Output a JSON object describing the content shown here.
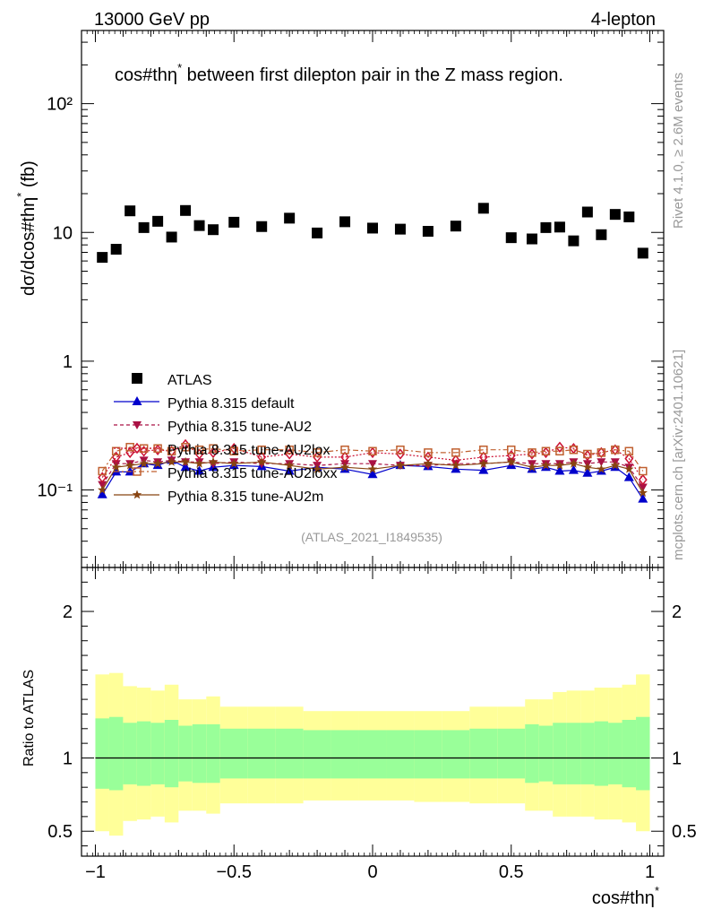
{
  "header": {
    "left": "13000 GeV pp",
    "right": "4-lepton",
    "side_right": "Rivet 4.1.0, ≥ 2.6M events",
    "side_right2": "mcplots.cern.ch [arXiv:2401.10621]",
    "watermark": "(ATLAS_2021_I1849535)"
  },
  "chart_data": [
    {
      "type": "scatter",
      "panel": "main",
      "title": "cos#thη* between first dilepton pair in the Z mass region.",
      "title_main": "cos#thη",
      "title_sup": "*",
      "title_rest": " between first dilepton pair in the Z mass region.",
      "ylabel": "dσ/dcos#thη* (fb)",
      "ylabel_main": "dσ/dcos#thη",
      "ylabel_sup": "*",
      "ylabel_rest": " (fb)",
      "yscale": "log",
      "xlim": [
        -1.05,
        1.05
      ],
      "ylim": [
        0.025,
        370
      ],
      "ytick_values": [
        0.1,
        1,
        10,
        100
      ],
      "ytick_labels": [
        "10⁻¹",
        "1",
        "10",
        "10²"
      ],
      "x": [
        -0.975,
        -0.925,
        -0.875,
        -0.825,
        -0.775,
        -0.725,
        -0.675,
        -0.625,
        -0.575,
        -0.5,
        -0.4,
        -0.3,
        -0.2,
        -0.1,
        0.0,
        0.1,
        0.2,
        0.3,
        0.4,
        0.5,
        0.575,
        0.625,
        0.675,
        0.725,
        0.775,
        0.825,
        0.875,
        0.925,
        0.975
      ],
      "series": [
        {
          "name": "ATLAS",
          "marker": "square",
          "color": "#000000",
          "values": [
            6.4,
            7.4,
            14.7,
            10.9,
            12.2,
            9.2,
            14.8,
            11.3,
            10.5,
            12.0,
            11.1,
            12.9,
            9.9,
            12.1,
            10.8,
            10.6,
            10.2,
            11.2,
            15.4,
            9.1,
            8.9,
            10.9,
            11.0,
            8.6,
            14.4,
            9.6,
            13.8,
            13.2,
            6.9
          ]
        },
        {
          "name": "Pythia 8.315 default",
          "marker": "triangle-up",
          "color": "#0000cc",
          "dash": "",
          "values": [
            0.092,
            0.138,
            0.138,
            0.16,
            0.155,
            0.17,
            0.15,
            0.14,
            0.15,
            0.155,
            0.152,
            0.14,
            0.15,
            0.145,
            0.132,
            0.155,
            0.152,
            0.145,
            0.142,
            0.155,
            0.145,
            0.15,
            0.14,
            0.142,
            0.135,
            0.14,
            0.15,
            0.125,
            0.085
          ]
        },
        {
          "name": "Pythia 8.315 tune-AU2",
          "marker": "triangle-down",
          "color": "#aa1144",
          "dash": "4,3",
          "values": [
            0.11,
            0.16,
            0.16,
            0.17,
            0.165,
            0.17,
            0.165,
            0.165,
            0.16,
            0.165,
            0.16,
            0.16,
            0.155,
            0.16,
            0.16,
            0.155,
            0.155,
            0.16,
            0.16,
            0.165,
            0.16,
            0.16,
            0.16,
            0.165,
            0.16,
            0.165,
            0.165,
            0.15,
            0.105
          ]
        },
        {
          "name": "Pythia 8.315 tune-AU2lox",
          "marker": "diamond",
          "color": "#cc1133",
          "dash": "2,2",
          "values": [
            0.125,
            0.18,
            0.195,
            0.2,
            0.205,
            0.2,
            0.225,
            0.19,
            0.195,
            0.21,
            0.18,
            0.19,
            0.18,
            0.18,
            0.195,
            0.19,
            0.18,
            0.17,
            0.18,
            0.185,
            0.19,
            0.195,
            0.215,
            0.21,
            0.185,
            0.195,
            0.205,
            0.175,
            0.12
          ]
        },
        {
          "name": "Pythia 8.315 tune-AU2lox",
          "label_suffix": "x",
          "marker": "open-square",
          "color": "#c06030",
          "dash": "6,3,2,3",
          "values": [
            0.14,
            0.2,
            0.215,
            0.21,
            0.21,
            0.2,
            0.215,
            0.205,
            0.21,
            0.2,
            0.205,
            0.205,
            0.195,
            0.205,
            0.2,
            0.205,
            0.195,
            0.195,
            0.205,
            0.205,
            0.195,
            0.2,
            0.2,
            0.205,
            0.19,
            0.195,
            0.205,
            0.2,
            0.14
          ]
        },
        {
          "name": "Pythia 8.315 tune-AU2m",
          "marker": "star",
          "color": "#884411",
          "dash": "",
          "values": [
            0.1,
            0.15,
            0.155,
            0.16,
            0.16,
            0.165,
            0.165,
            0.16,
            0.165,
            0.16,
            0.165,
            0.155,
            0.145,
            0.15,
            0.145,
            0.155,
            0.16,
            0.155,
            0.16,
            0.165,
            0.15,
            0.155,
            0.155,
            0.16,
            0.15,
            0.145,
            0.155,
            0.145,
            0.095
          ]
        }
      ],
      "legend": [
        "ATLAS",
        "Pythia 8.315 default",
        "Pythia 8.315 tune-AU2",
        "Pythia 8.315 tune-AU2lox",
        "Pythia 8.315 tune-AU2loxx",
        "Pythia 8.315 tune-AU2m"
      ],
      "legend_position": "center-left"
    },
    {
      "type": "area",
      "panel": "ratio",
      "ylabel": "Ratio to ATLAS",
      "xlabel": "cos#thη*",
      "xlabel_main": "cos#thη",
      "xlabel_sup": "*",
      "xlim": [
        -1.05,
        1.05
      ],
      "ylim": [
        0.33,
        2.3
      ],
      "ytick_values": [
        0.5,
        1,
        2
      ],
      "ytick_labels": [
        "0.5",
        "1",
        "2"
      ],
      "xtick_values": [
        -1,
        -0.5,
        0,
        0.5,
        1
      ],
      "xtick_labels": [
        "−1",
        "−0.5",
        "0",
        "0.5",
        "1"
      ],
      "bin_edges": [
        -1.0,
        -0.95,
        -0.9,
        -0.85,
        -0.8,
        -0.75,
        -0.7,
        -0.65,
        -0.6,
        -0.55,
        -0.45,
        -0.35,
        -0.25,
        -0.15,
        -0.05,
        0.05,
        0.15,
        0.25,
        0.35,
        0.45,
        0.55,
        0.6,
        0.65,
        0.7,
        0.75,
        0.8,
        0.85,
        0.9,
        0.95,
        1.0
      ],
      "green_band_lo": [
        0.79,
        0.78,
        0.82,
        0.81,
        0.82,
        0.8,
        0.84,
        0.83,
        0.83,
        0.86,
        0.86,
        0.86,
        0.86,
        0.86,
        0.86,
        0.86,
        0.86,
        0.86,
        0.86,
        0.86,
        0.83,
        0.84,
        0.82,
        0.82,
        0.82,
        0.81,
        0.82,
        0.8,
        0.78
      ],
      "green_band_hi": [
        1.27,
        1.28,
        1.24,
        1.25,
        1.24,
        1.26,
        1.22,
        1.23,
        1.23,
        1.2,
        1.2,
        1.2,
        1.19,
        1.19,
        1.19,
        1.19,
        1.19,
        1.19,
        1.2,
        1.2,
        1.23,
        1.22,
        1.24,
        1.24,
        1.24,
        1.25,
        1.24,
        1.26,
        1.28
      ],
      "yellow_band_lo": [
        0.5,
        0.47,
        0.57,
        0.58,
        0.6,
        0.56,
        0.64,
        0.64,
        0.62,
        0.69,
        0.69,
        0.69,
        0.71,
        0.71,
        0.71,
        0.71,
        0.7,
        0.7,
        0.69,
        0.69,
        0.64,
        0.64,
        0.6,
        0.6,
        0.6,
        0.58,
        0.58,
        0.56,
        0.5
      ],
      "yellow_band_hi": [
        1.57,
        1.58,
        1.49,
        1.48,
        1.46,
        1.5,
        1.4,
        1.4,
        1.42,
        1.35,
        1.35,
        1.35,
        1.32,
        1.32,
        1.32,
        1.32,
        1.32,
        1.32,
        1.35,
        1.35,
        1.4,
        1.4,
        1.45,
        1.46,
        1.46,
        1.48,
        1.48,
        1.5,
        1.57
      ],
      "reference_line": 1.0
    }
  ]
}
